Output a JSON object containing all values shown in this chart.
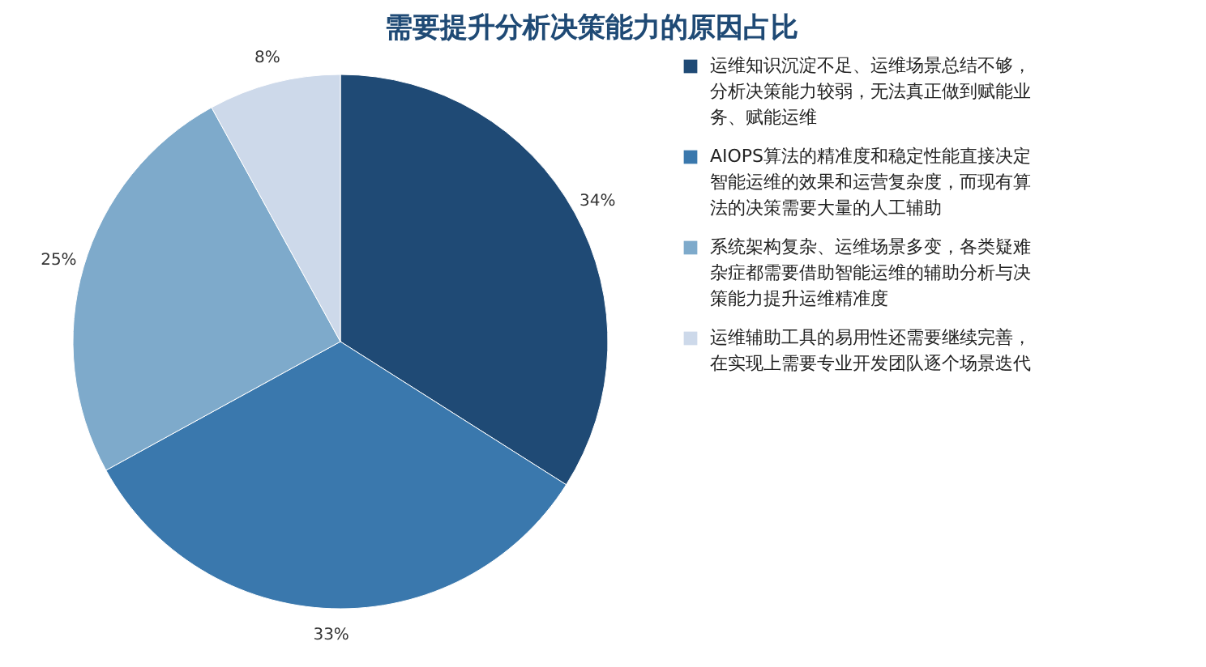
{
  "chart_data": {
    "type": "pie",
    "title": "需要提升分析决策能力的原因占比",
    "categories": [
      "运维知识沉淀不足、运维场景总结不够，分析决策能力较弱，无法真正做到赋能业务、赋能运维",
      "AIOPS算法的精准度和稳定性能直接决定智能运维的效果和运营复杂度，而现有算法的决策需要大量的人工辅助",
      "系统架构复杂、运维场景多变，各类疑难杂症都需要借助智能运维的辅助分析与决策能力提升运维精准度",
      "运维辅助工具的易用性还需要继续完善，在实现上需要专业开发团队逐个场景迭代"
    ],
    "values": [
      34,
      33,
      25,
      8
    ],
    "colors": [
      "#1f4a75",
      "#3a78ad",
      "#7eaacb",
      "#cdd9ea"
    ],
    "legend": "right",
    "value_labels": [
      "34%",
      "33%",
      "25%",
      "8%"
    ]
  }
}
